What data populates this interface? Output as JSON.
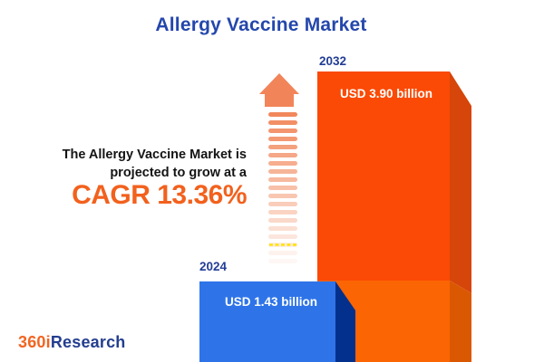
{
  "title": "Allergy Vaccine Market",
  "tagline": {
    "line1": "The Allergy Vaccine Market is",
    "line2": "projected to grow at a",
    "cagr": "CAGR 13.36%"
  },
  "bars": [
    {
      "year": "2024",
      "value_label": "USD 1.43 billion"
    },
    {
      "year": "2032",
      "value_label": "USD 3.90 billion"
    }
  ],
  "logo": {
    "prefix": "360i",
    "suffix": "Research"
  },
  "colors": {
    "title_blue": "#2447AC",
    "year_label_blue": "#223D96",
    "tagline_dark": "#141414",
    "cagr_orange": "#F2611D",
    "logo_orange": "#F26522",
    "logo_blue": "#233E8F",
    "bar2024_front": "#2E74E8",
    "bar2024_side": "#03308C",
    "bar2032_front_top": "#FB4A05",
    "bar2032_front_bottom": "#FC6503",
    "bar2032_side_top": "#D64509",
    "bar2032_side_bottom": "#DB5803",
    "arrow_head": "#F2845A",
    "arrow_stripe": "#F07E4E",
    "accent_yellow": "#FFE400",
    "value_text_white": "#FFFFFF"
  },
  "chart_data": {
    "type": "bar",
    "title": "Allergy Vaccine Market",
    "categories": [
      "2024",
      "2032"
    ],
    "values": [
      1.43,
      3.9
    ],
    "unit": "USD billion",
    "value_labels": [
      "USD 1.43 billion",
      "USD 3.90 billion"
    ],
    "growth_annotation": "The Allergy Vaccine Market is projected to grow at a CAGR 13.36%",
    "cagr_percent": 13.36,
    "series_colors": [
      "#2E74E8",
      "#FB4A05"
    ],
    "legend": "none",
    "axes_visible": false,
    "style": "3d-infographic-bars"
  }
}
